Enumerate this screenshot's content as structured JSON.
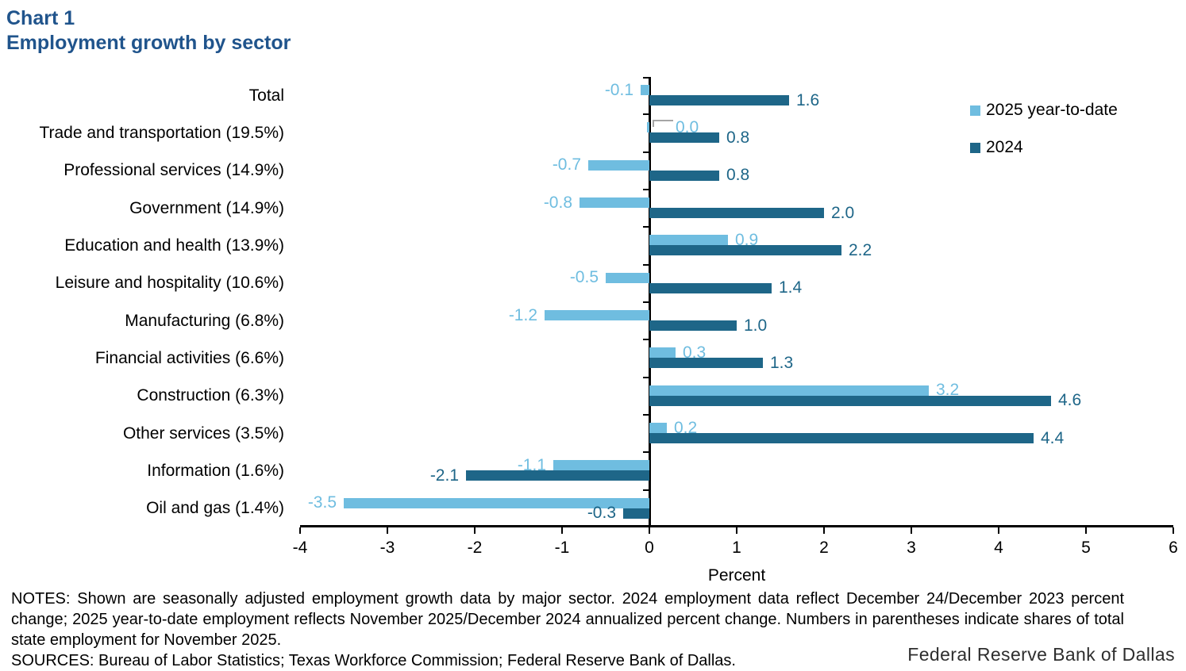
{
  "title": "Chart 1",
  "subtitle": "Employment growth by sector",
  "colors": {
    "light_blue": "#6FBDE0",
    "dark_blue": "#1E6688",
    "title_blue": "#20548C",
    "leader_gray": "#A6A6A6",
    "axis_black": "#000000"
  },
  "chart_data": {
    "type": "bar",
    "orientation": "horizontal",
    "title": "Employment growth by sector",
    "xlabel": "Percent",
    "xlim": [
      -4,
      6
    ],
    "x_ticks": [
      "-4",
      "-3",
      "-2",
      "-1",
      "0",
      "1",
      "2",
      "3",
      "4",
      "5",
      "6"
    ],
    "grid": false,
    "legend_position": "upper right",
    "categories": [
      "Total",
      "Trade and transportation (19.5%)",
      "Professional services (14.9%)",
      "Government (14.9%)",
      "Education and health (13.9%)",
      "Leisure and hospitality (10.6%)",
      "Manufacturing (6.8%)",
      "Financial activities (6.6%)",
      "Construction (6.3%)",
      "Other services (3.5%)",
      "Information (1.6%)",
      "Oil and gas (1.4%)"
    ],
    "series": [
      {
        "name": "2025 year-to-date",
        "color_key": "light_blue",
        "values": [
          -0.1,
          -0.0,
          -0.7,
          -0.8,
          0.9,
          -0.5,
          -1.2,
          0.3,
          3.2,
          0.2,
          -1.1,
          -3.5
        ],
        "labels": [
          "-0.1",
          "0.0",
          "-0.7",
          "-0.8",
          "0.9",
          "-0.5",
          "-1.2",
          "0.3",
          "3.2",
          "0.2",
          "-1.1",
          "-3.5"
        ]
      },
      {
        "name": "2024",
        "color_key": "dark_blue",
        "values": [
          1.6,
          0.8,
          0.8,
          2.0,
          2.2,
          1.4,
          1.0,
          1.3,
          4.6,
          4.4,
          -2.1,
          -0.3
        ],
        "labels": [
          "1.6",
          "0.8",
          "0.8",
          "2.0",
          "2.2",
          "1.4",
          "1.0",
          "1.3",
          "4.6",
          "4.4",
          "-2.1",
          "-0.3"
        ]
      }
    ],
    "leader_line_label": {
      "series": 0,
      "index": 1
    }
  },
  "notes": "NOTES: Shown are seasonally adjusted employment growth data by major sector. 2024 employment data reflect December 24/December 2023 percent change; 2025 year-to-date employment reflects November 2025/December 2024 annualized percent change. Numbers in parentheses indicate shares of total state employment for November 2025.",
  "sources": "SOURCES: Bureau of Labor Statistics; Texas Workforce Commission; Federal Reserve Bank of Dallas.",
  "footer_logo": "Federal Reserve Bank of Dallas"
}
